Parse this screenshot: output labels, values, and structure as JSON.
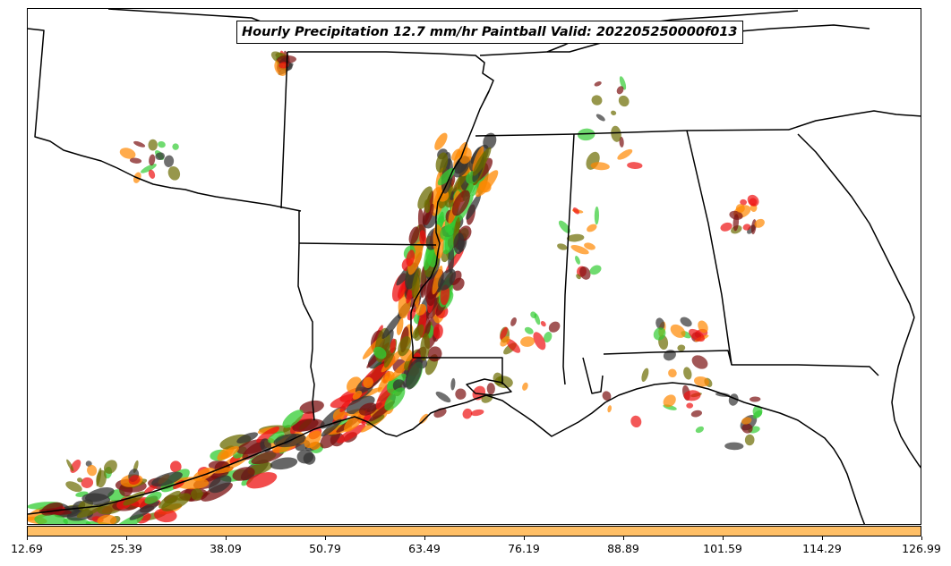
{
  "title": "Hourly Precipitation 12.7 mm/hr Paintball Valid: 202205250000f013",
  "colors": {
    "colorbar": "#ffbf66",
    "border": "#000000",
    "paint": [
      "#33cc33",
      "#6b6b00",
      "#ee1111",
      "#ff8800",
      "#7a0f0f",
      "#333333"
    ]
  },
  "colorbar": {
    "ticks": [
      "12.69",
      "25.39",
      "38.09",
      "50.79",
      "63.49",
      "76.19",
      "88.89",
      "101.59",
      "114.29",
      "126.99"
    ]
  }
}
